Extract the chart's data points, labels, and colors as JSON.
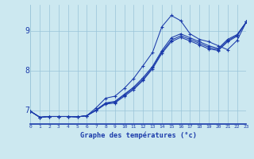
{
  "background_color": "#cce8f0",
  "line_color": "#1a3aaa",
  "grid_color": "#99c4d8",
  "xlabel": "Graphe des températures (°c)",
  "xlabel_color": "#1a3aaa",
  "xlim": [
    0,
    23
  ],
  "ylim": [
    6.65,
    9.65
  ],
  "yticks": [
    7,
    8,
    9
  ],
  "xticks": [
    0,
    1,
    2,
    3,
    4,
    5,
    6,
    7,
    8,
    9,
    10,
    11,
    12,
    13,
    14,
    15,
    16,
    17,
    18,
    19,
    20,
    21,
    22,
    23
  ],
  "curves": [
    [
      6.97,
      6.82,
      6.84,
      6.84,
      6.84,
      6.83,
      6.86,
      7.06,
      7.3,
      7.35,
      7.55,
      7.8,
      8.12,
      8.45,
      9.1,
      9.38,
      9.25,
      8.92,
      8.78,
      8.72,
      8.62,
      8.52,
      8.75,
      9.22
    ],
    [
      6.97,
      6.82,
      6.84,
      6.84,
      6.84,
      6.83,
      6.86,
      7.01,
      7.18,
      7.22,
      7.4,
      7.58,
      7.82,
      8.1,
      8.5,
      8.82,
      8.92,
      8.82,
      8.72,
      8.62,
      8.55,
      8.78,
      8.9,
      9.22
    ],
    [
      6.97,
      6.82,
      6.84,
      6.84,
      6.84,
      6.83,
      6.86,
      7.0,
      7.17,
      7.2,
      7.38,
      7.55,
      7.78,
      8.07,
      8.46,
      8.76,
      8.87,
      8.78,
      8.68,
      8.58,
      8.52,
      8.75,
      8.88,
      9.22
    ],
    [
      6.97,
      6.82,
      6.84,
      6.84,
      6.84,
      6.83,
      6.86,
      6.99,
      7.15,
      7.18,
      7.35,
      7.52,
      7.75,
      8.04,
      8.43,
      8.72,
      8.83,
      8.74,
      8.64,
      8.54,
      8.5,
      8.72,
      8.86,
      9.22
    ]
  ]
}
